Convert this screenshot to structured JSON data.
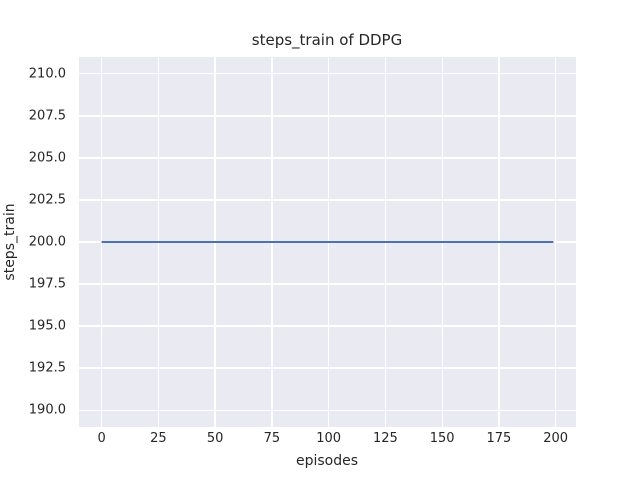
{
  "chart_data": {
    "type": "line",
    "title": "steps_train of DDPG",
    "xlabel": "episodes",
    "ylabel": "steps_train",
    "xlim": [
      -9.95,
      208.95
    ],
    "ylim": [
      189,
      211
    ],
    "xticks": [
      0,
      25,
      50,
      75,
      100,
      125,
      150,
      175,
      200
    ],
    "xtick_labels": [
      "0",
      "25",
      "50",
      "75",
      "100",
      "125",
      "150",
      "175",
      "200"
    ],
    "yticks": [
      190,
      192.5,
      195,
      197.5,
      200,
      202.5,
      205,
      207.5,
      210
    ],
    "ytick_labels": [
      "190.0",
      "192.5",
      "195.0",
      "197.5",
      "200.0",
      "202.5",
      "205.0",
      "207.5",
      "210.0"
    ],
    "grid": true,
    "legend": null,
    "style": {
      "figure_bg": "#ffffff",
      "plot_bg": "#eaeaf2",
      "grid_color": "#ffffff",
      "text_color": "#262626",
      "line_color": "#4c72b0"
    },
    "series": [
      {
        "name": "steps_train",
        "color": "#4c72b0",
        "x_range": [
          0,
          199
        ],
        "y_value": 200,
        "points": [
          [
            0,
            200
          ],
          [
            199,
            200
          ]
        ]
      }
    ]
  }
}
